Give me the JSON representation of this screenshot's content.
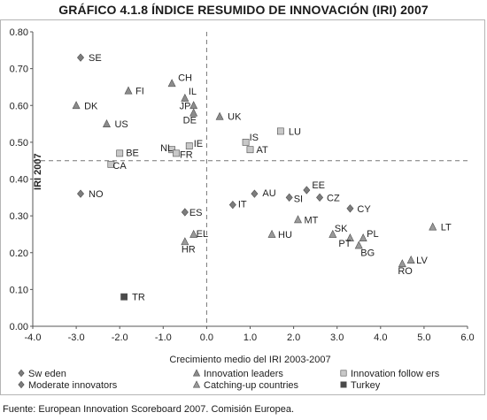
{
  "title": "GRÁFICO 4.1.8 ÍNDICE RESUMIDO DE INNOVACIÓN (IRI) 2007",
  "source": "Fuente: European Innovation Scoreboard 2007. Comisión Europea.",
  "chart_data": {
    "type": "scatter",
    "xlabel": "Crecimiento medio del IRI 2003-2007",
    "ylabel": "IRI 2007",
    "xlim": [
      -4.0,
      6.0
    ],
    "ylim": [
      0.0,
      0.8
    ],
    "x_ticks": [
      "-4.0",
      "-3.0",
      "-2.0",
      "-1.0",
      "0.0",
      "1.0",
      "2.0",
      "3.0",
      "4.0",
      "5.0",
      "6.0"
    ],
    "y_ticks": [
      "0.00",
      "0.10",
      "0.20",
      "0.30",
      "0.40",
      "0.50",
      "0.60",
      "0.70",
      "0.80"
    ],
    "reference_lines": {
      "x": 0.0,
      "y": 0.45
    },
    "grid": false,
    "legend_position": "bottom",
    "series": [
      {
        "name": "Sw eden",
        "marker": "diamond",
        "color": "#7d7d7d",
        "points": [
          {
            "label": "SE",
            "x": -2.9,
            "y": 0.73
          }
        ]
      },
      {
        "name": "Innovation leaders",
        "marker": "triangle",
        "color": "#8c8c8c",
        "points": [
          {
            "label": "CH",
            "x": -0.8,
            "y": 0.66
          },
          {
            "label": "FI",
            "x": -1.8,
            "y": 0.64
          },
          {
            "label": "DK",
            "x": -3.0,
            "y": 0.6
          },
          {
            "label": "IL",
            "x": -0.5,
            "y": 0.62
          },
          {
            "label": "JP",
            "x": -0.3,
            "y": 0.6
          },
          {
            "label": "DE",
            "x": -0.3,
            "y": 0.58
          },
          {
            "label": "UK",
            "x": 0.3,
            "y": 0.57
          },
          {
            "label": "US",
            "x": -2.3,
            "y": 0.55
          }
        ]
      },
      {
        "name": "Innovation follow ers",
        "marker": "square",
        "color": "#c8c8c8",
        "points": [
          {
            "label": "LU",
            "x": 1.7,
            "y": 0.53
          },
          {
            "label": "IS",
            "x": 0.9,
            "y": 0.5
          },
          {
            "label": "AT",
            "x": 1.0,
            "y": 0.48
          },
          {
            "label": "NL",
            "x": -0.8,
            "y": 0.48
          },
          {
            "label": "IE",
            "x": -0.4,
            "y": 0.49
          },
          {
            "label": "FR",
            "x": -0.7,
            "y": 0.47
          },
          {
            "label": "BE",
            "x": -2.0,
            "y": 0.47
          },
          {
            "label": "CA",
            "x": -2.2,
            "y": 0.44
          }
        ]
      },
      {
        "name": "Moderate innovators",
        "marker": "diamond",
        "color": "#7d7d7d",
        "points": [
          {
            "label": "NO",
            "x": -2.9,
            "y": 0.36
          },
          {
            "label": "AU",
            "x": 1.1,
            "y": 0.36
          },
          {
            "label": "IT",
            "x": 0.6,
            "y": 0.33
          },
          {
            "label": "EE",
            "x": 2.3,
            "y": 0.37
          },
          {
            "label": "SI",
            "x": 1.9,
            "y": 0.35
          },
          {
            "label": "CZ",
            "x": 2.6,
            "y": 0.35
          },
          {
            "label": "CY",
            "x": 3.3,
            "y": 0.32
          },
          {
            "label": "ES",
            "x": -0.5,
            "y": 0.31
          }
        ]
      },
      {
        "name": "Catching-up countries",
        "marker": "triangle",
        "color": "#9a9a9a",
        "points": [
          {
            "label": "MT",
            "x": 2.1,
            "y": 0.29
          },
          {
            "label": "HU",
            "x": 1.5,
            "y": 0.25
          },
          {
            "label": "SK",
            "x": 2.9,
            "y": 0.25
          },
          {
            "label": "PL",
            "x": 3.6,
            "y": 0.24
          },
          {
            "label": "PT",
            "x": 3.3,
            "y": 0.24
          },
          {
            "label": "BG",
            "x": 3.5,
            "y": 0.22
          },
          {
            "label": "LT",
            "x": 5.2,
            "y": 0.27
          },
          {
            "label": "LV",
            "x": 4.7,
            "y": 0.18
          },
          {
            "label": "RO",
            "x": 4.5,
            "y": 0.17
          },
          {
            "label": "EL",
            "x": -0.3,
            "y": 0.25
          },
          {
            "label": "HR",
            "x": -0.5,
            "y": 0.23
          }
        ]
      },
      {
        "name": "Turkey",
        "marker": "square",
        "color": "#4a4a4a",
        "points": [
          {
            "label": "TR",
            "x": -1.9,
            "y": 0.08
          }
        ]
      }
    ]
  }
}
